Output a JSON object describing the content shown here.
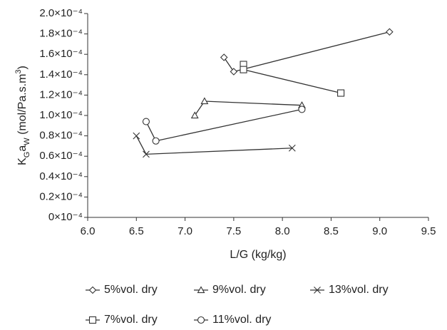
{
  "chart_data": {
    "type": "line",
    "x_label": "L/G (kg/kg)",
    "y_label": [
      "K",
      "G",
      "a",
      "W",
      " (mol/Pa.s.m",
      "3",
      ")"
    ],
    "xlim": [
      6,
      9.5
    ],
    "xticks": [
      {
        "value": 6,
        "label": "6.0"
      },
      {
        "value": 6.5,
        "label": "6.5"
      },
      {
        "value": 7,
        "label": "7.0"
      },
      {
        "value": 7.5,
        "label": "7.5"
      },
      {
        "value": 8,
        "label": "8.0"
      },
      {
        "value": 8.5,
        "label": "8.5"
      },
      {
        "value": 9,
        "label": "9.0"
      },
      {
        "value": 9.5,
        "label": "9.5"
      }
    ],
    "ylim": [
      0,
      0.0002
    ],
    "yticks": [
      {
        "value": 0,
        "label": "0×10⁻⁴"
      },
      {
        "value": 2e-05,
        "label": "0.2×10⁻⁴"
      },
      {
        "value": 4e-05,
        "label": "0.4×10⁻⁴"
      },
      {
        "value": 6e-05,
        "label": "0.6×10⁻⁴"
      },
      {
        "value": 8e-05,
        "label": "0.8×10⁻⁴"
      },
      {
        "value": 0.0001,
        "label": "1.0×10⁻⁴"
      },
      {
        "value": 0.00012,
        "label": "1.2×10⁻⁴"
      },
      {
        "value": 0.00014,
        "label": "1.4×10⁻⁴"
      },
      {
        "value": 0.00016,
        "label": "1.6×10⁻⁴"
      },
      {
        "value": 0.00018,
        "label": "1.8×10⁻⁴"
      },
      {
        "value": 0.0002,
        "label": "2.0×10⁻⁴"
      }
    ],
    "grid": false,
    "series": [
      {
        "name": "5%vol. dry",
        "color": "#333333",
        "marker": "diamond",
        "x": [
          7.4,
          7.5,
          9.1
        ],
        "values": [
          0.000157,
          0.000143,
          0.000182
        ]
      },
      {
        "name": "7%vol. dry",
        "color": "#333333",
        "marker": "square",
        "x": [
          7.6,
          7.6,
          8.6
        ],
        "values": [
          0.00015,
          0.000145,
          0.000122
        ]
      },
      {
        "name": "9%vol. dry",
        "color": "#333333",
        "marker": "triangle",
        "x": [
          7.1,
          7.2,
          8.2
        ],
        "values": [
          0.0001,
          0.000114,
          0.00011
        ]
      },
      {
        "name": "11%vol. dry",
        "color": "#333333",
        "marker": "circle",
        "x": [
          6.6,
          6.7,
          8.2
        ],
        "values": [
          9.4e-05,
          7.5e-05,
          0.000106
        ]
      },
      {
        "name": "13%vol. dry",
        "color": "#333333",
        "marker": "x",
        "x": [
          6.5,
          6.6,
          8.1
        ],
        "values": [
          8e-05,
          6.2e-05,
          6.8e-05
        ]
      }
    ]
  }
}
